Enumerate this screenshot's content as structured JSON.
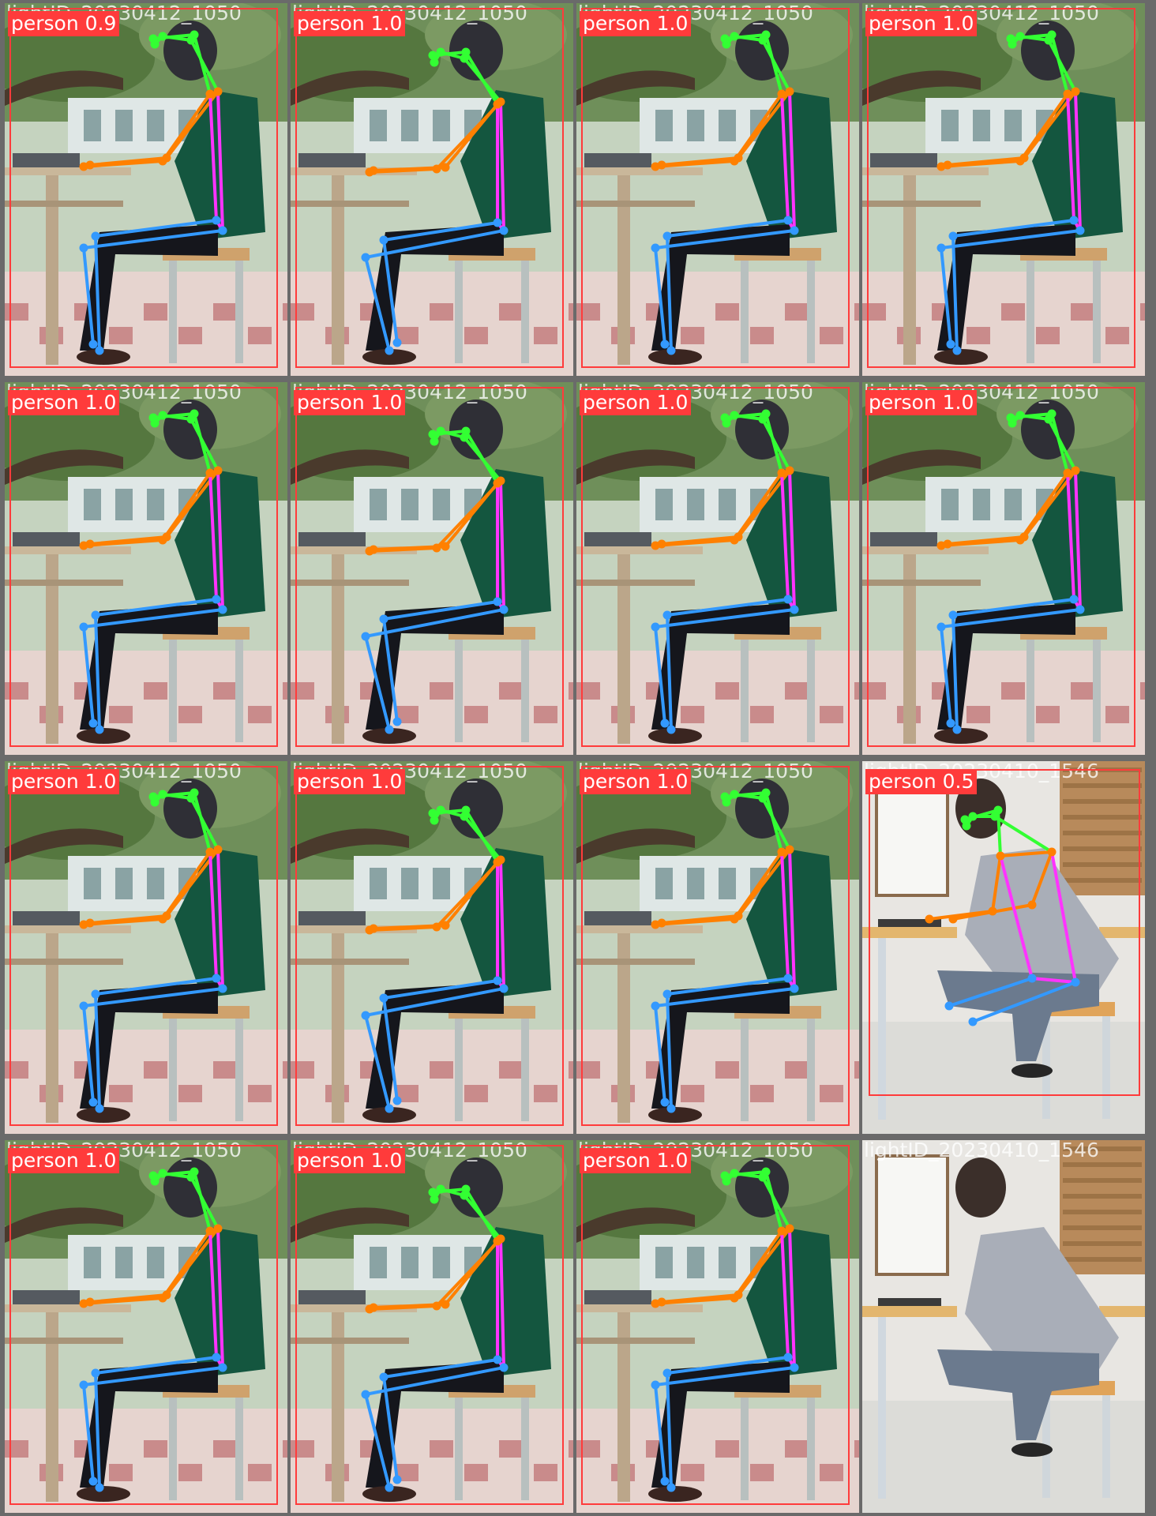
{
  "tiles": [
    {
      "fname": "lightID_20230412_1050",
      "detection": "person 0.9",
      "subject": "green",
      "pose": "straight"
    },
    {
      "fname": "lightID_20230412_1050",
      "detection": "person 1.0",
      "subject": "green",
      "pose": "lean"
    },
    {
      "fname": "lightID_20230412_1050",
      "detection": "person 1.0",
      "subject": "green",
      "pose": "straight"
    },
    {
      "fname": "lightID_20230412_1050",
      "detection": "person 1.0",
      "subject": "green",
      "pose": "straight"
    },
    {
      "fname": "lightID_20230412_1050",
      "detection": "person 1.0",
      "subject": "green",
      "pose": "straight"
    },
    {
      "fname": "lightID_20230412_1050",
      "detection": "person 1.0",
      "subject": "green",
      "pose": "lean"
    },
    {
      "fname": "lightID_20230412_1050",
      "detection": "person 1.0",
      "subject": "green",
      "pose": "straight"
    },
    {
      "fname": "lightID_20230412_1050",
      "detection": "person 1.0",
      "subject": "green",
      "pose": "straight"
    },
    {
      "fname": "lightID_20230412_1050",
      "detection": "person 1.0",
      "subject": "green",
      "pose": "straight"
    },
    {
      "fname": "lightID_20230412_1050",
      "detection": "person 1.0",
      "subject": "green",
      "pose": "lean"
    },
    {
      "fname": "lightID_20230412_1050",
      "detection": "person 1.0",
      "subject": "green",
      "pose": "straight"
    },
    {
      "fname": "lightID_20230410_1546",
      "detection": "person 0.5",
      "subject": "gray",
      "pose": "gray"
    },
    {
      "fname": "lightID_20230412_1050",
      "detection": "person 1.0",
      "subject": "green",
      "pose": "straight"
    },
    {
      "fname": "lightID_20230412_1050",
      "detection": "person 1.0",
      "subject": "green",
      "pose": "lean"
    },
    {
      "fname": "lightID_20230412_1050",
      "detection": "person 1.0",
      "subject": "green",
      "pose": "straight"
    },
    {
      "fname": "lightID_20230410_1546",
      "detection": "",
      "subject": "gray",
      "pose": "none"
    }
  ],
  "colors": {
    "box": "#ff3b3b",
    "head_limb": "#33ff33",
    "arm_limb": "#ff8000",
    "torso_limb": "#ff33ff",
    "leg_limb": "#3399ff",
    "shirt_green": "#14563f",
    "jacket_gray": "#a9aeb8"
  }
}
